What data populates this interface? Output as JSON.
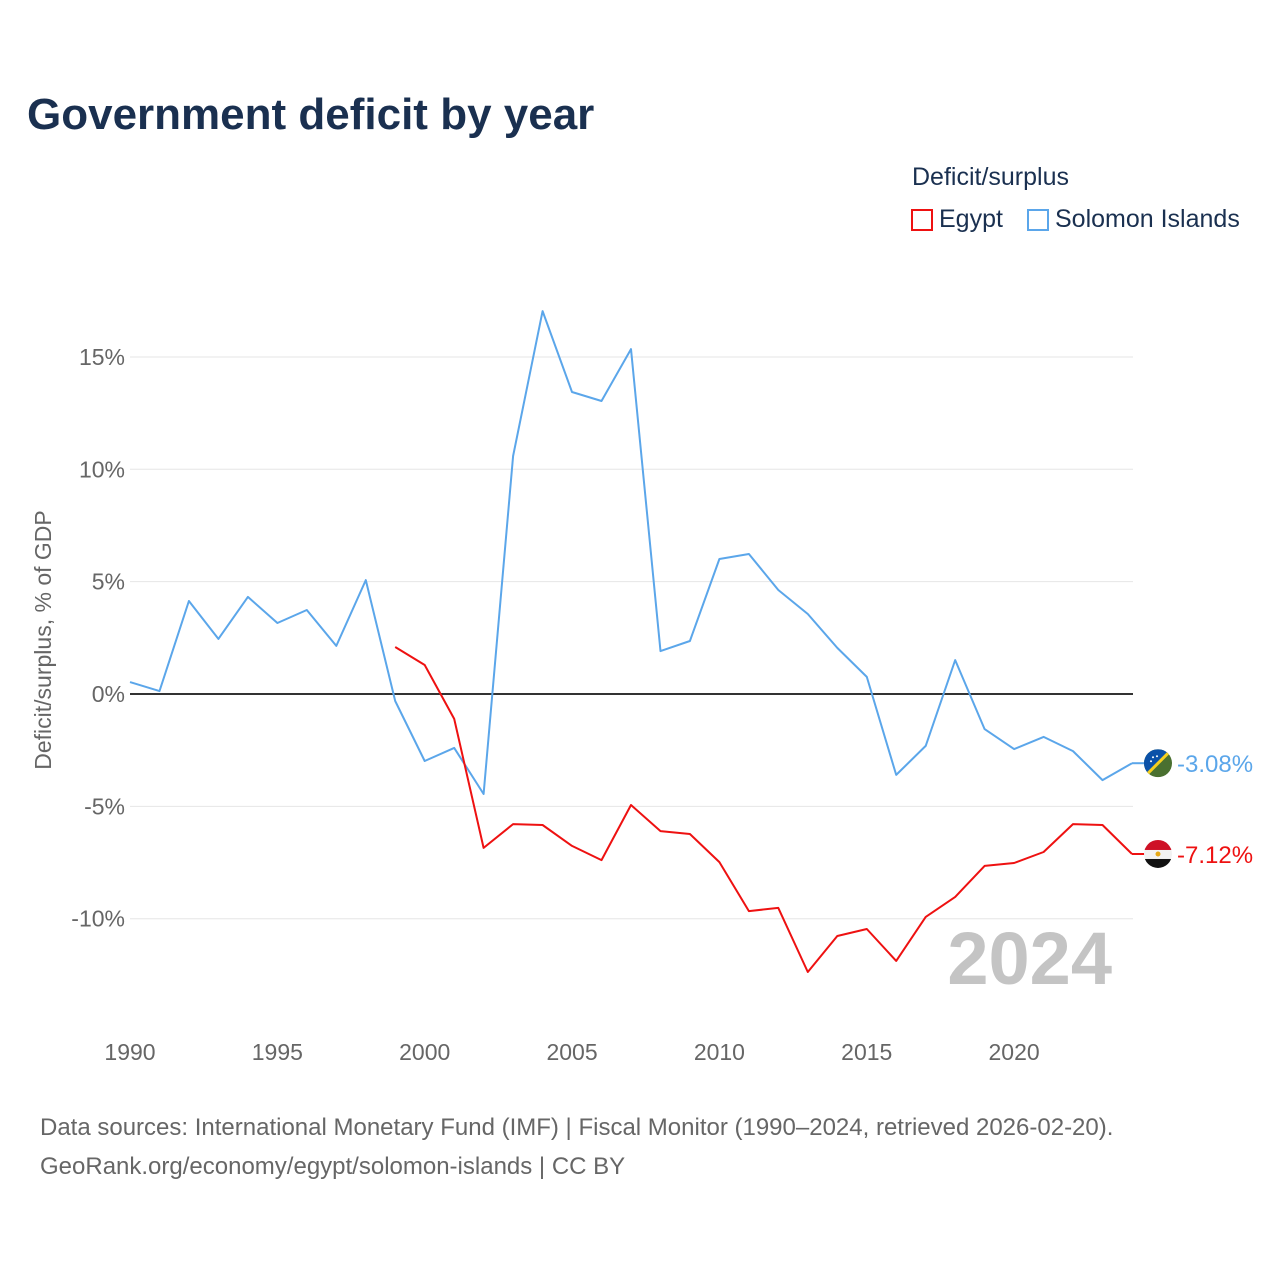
{
  "chart_data": {
    "type": "line",
    "title": "Government deficit by year",
    "ylabel": "Deficit/surplus, % of GDP",
    "xlabel": "",
    "legend_title": "Deficit/surplus",
    "legend_placement": "top-right",
    "xlim": [
      1990,
      2024
    ],
    "ylim": [
      -15,
      18
    ],
    "x_ticks": [
      1990,
      1995,
      2000,
      2005,
      2010,
      2015,
      2020
    ],
    "y_ticks": [
      15,
      10,
      5,
      0,
      -5,
      -10
    ],
    "y_tick_labels": [
      "15%",
      "10%",
      "5%",
      "0%",
      "-5%",
      "-10%"
    ],
    "year_watermark": "2024",
    "series": [
      {
        "name": "Egypt",
        "color": "#ee1111",
        "end_label": "-7.12%",
        "flag": "egypt-flag",
        "x": [
          1999,
          2000,
          2001,
          2002,
          2003,
          2004,
          2005,
          2006,
          2007,
          2008,
          2009,
          2010,
          2011,
          2012,
          2013,
          2014,
          2015,
          2016,
          2017,
          2018,
          2019,
          2020,
          2021,
          2022,
          2023,
          2024
        ],
        "values": [
          2.09,
          1.29,
          -1.11,
          -6.85,
          -5.79,
          -5.83,
          -6.76,
          -7.39,
          -4.94,
          -6.1,
          -6.23,
          -7.48,
          -9.66,
          -9.52,
          -12.37,
          -10.77,
          -10.46,
          -11.88,
          -9.92,
          -9.03,
          -7.65,
          -7.52,
          -7.03,
          -5.79,
          -5.83,
          -7.12
        ]
      },
      {
        "name": "Solomon Islands",
        "color": "#5ba6ea",
        "end_label": "-3.08%",
        "flag": "solomon-islands-flag",
        "x": [
          1990,
          1991,
          1992,
          1993,
          1994,
          1995,
          1996,
          1997,
          1998,
          1999,
          2000,
          2001,
          2002,
          2003,
          2004,
          2005,
          2006,
          2007,
          2008,
          2009,
          2010,
          2011,
          2012,
          2013,
          2014,
          2015,
          2016,
          2017,
          2018,
          2019,
          2020,
          2021,
          2022,
          2023,
          2024
        ],
        "values": [
          0.53,
          0.13,
          4.14,
          2.45,
          4.32,
          3.16,
          3.74,
          2.14,
          5.07,
          -0.31,
          -2.98,
          -2.4,
          -4.45,
          10.59,
          17.04,
          13.44,
          13.04,
          15.35,
          1.91,
          2.36,
          6.01,
          6.23,
          4.63,
          3.56,
          2.05,
          0.76,
          -3.6,
          -2.31,
          1.51,
          -1.56,
          -2.45,
          -1.91,
          -2.54,
          -3.83,
          -3.08
        ]
      }
    ]
  },
  "source": {
    "line1": "Data sources: International Monetary Fund (IMF) | Fiscal Monitor (1990–2024, retrieved 2026-02-20).",
    "line2": "GeoRank.org/economy/egypt/solomon-islands | CC BY"
  }
}
